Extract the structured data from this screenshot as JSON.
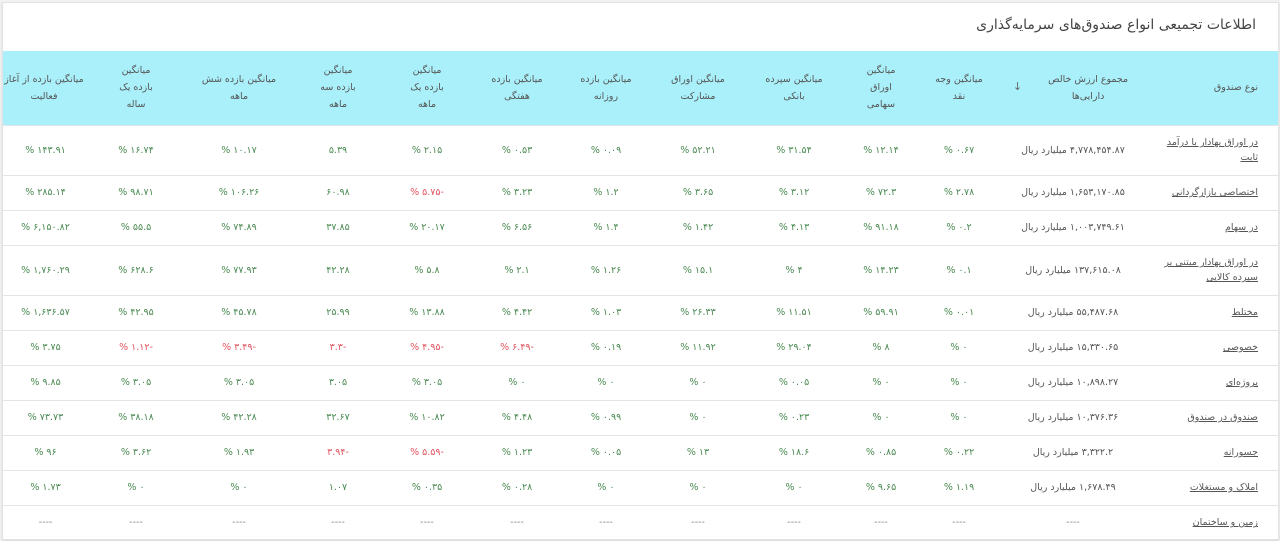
{
  "title": "اطلاعات تجمیعی انواع صندوق‌های سرمایه‌گذاری",
  "colors": {
    "header_bg": "#aaf0fa",
    "positive": "#4a8a52",
    "negative": "#e0535f"
  },
  "columns": [
    {
      "label": "نوع صندوق"
    },
    {
      "label": "مجموع ارزش خالص دارایی‌ها",
      "icon": "sort-down-arrow-icon"
    },
    {
      "label": "میانگین وجه نقد"
    },
    {
      "label": "میانگین اوراق سهامی"
    },
    {
      "label": "میانگین سپرده بانکی"
    },
    {
      "label": "میانگین اوراق مشارکت"
    },
    {
      "label": "میانگین بازده روزانه"
    },
    {
      "label": "میانگین بازده هفتگی"
    },
    {
      "label": "میانگین بازده یک ماهه"
    },
    {
      "label": "میانگین بازده سه ماهه"
    },
    {
      "label": "میانگین بازده شش ماهه"
    },
    {
      "label": "میانگین بازده یک ساله"
    },
    {
      "label": "میانگین بازده از آغاز فعالیت"
    }
  ],
  "rows": [
    {
      "type": "در اوراق بهادار با درآمد ثابت",
      "nav": "۴,۷۷۸,۴۵۴.۸۷ میلیارد ریال",
      "cash": "۰.۶۷ %",
      "stock": "۱۲.۱۴ %",
      "deposit": "۳۱.۵۴ %",
      "bonds": "۵۲.۲۱ %",
      "daily": "۰.۰۹ %",
      "weekly": "۰.۵۳ %",
      "m1": "۲.۱۵ %",
      "m3": "۵.۳۹",
      "m6": "۱۰.۱۷ %",
      "y1": "۱۶.۷۴ %",
      "since": "۱۴۳.۹۱ %",
      "neg": []
    },
    {
      "type": "اختصاصی بازارگردانی",
      "nav": "۱,۶۵۳,۱۷۰.۸۵ میلیارد ریال",
      "cash": "۲.۷۸ %",
      "stock": "۷۲.۳ %",
      "deposit": "۳.۱۲ %",
      "bonds": "۳.۶۵ %",
      "daily": "۱.۲ %",
      "weekly": "۳.۲۳ %",
      "m1": "-۵.۷۵ %",
      "m3": "۶۰.۹۸",
      "m6": "۱۰۶.۲۶ %",
      "y1": "۹۸.۷۱ %",
      "since": "۲۸۵.۱۴ %",
      "neg": [
        "m1"
      ]
    },
    {
      "type": "در سهام",
      "nav": "۱,۰۰۳,۷۴۹.۶۱ میلیارد ریال",
      "cash": "۰.۲ %",
      "stock": "۹۱.۱۸ %",
      "deposit": "۴.۱۳ %",
      "bonds": "۱.۴۲ %",
      "daily": "۱.۴ %",
      "weekly": "۶.۵۶ %",
      "m1": "۲۰.۱۷ %",
      "m3": "۳۷.۸۵",
      "m6": "۷۴.۸۹ %",
      "y1": "۵۵.۵ %",
      "since": "۶,۱۵۰.۸۲ %",
      "neg": []
    },
    {
      "type": "در اوراق بهادار مبتنی بر سپرده کالایی",
      "nav": "۱۳۷,۶۱۵.۰۸ میلیارد ریال",
      "cash": "۰.۱ %",
      "stock": "۱۴.۲۳ %",
      "deposit": "۴ %",
      "bonds": "۱۵.۱ %",
      "daily": "۱.۲۶ %",
      "weekly": "۲.۱ %",
      "m1": "۵.۸ %",
      "m3": "۴۲.۲۸",
      "m6": "۷۷.۹۳ %",
      "y1": "۶۲۸.۶ %",
      "since": "۱,۷۶۰.۲۹ %",
      "neg": []
    },
    {
      "type": "مختلط",
      "nav": "۵۵,۴۸۷.۶۸ میلیارد ریال",
      "cash": "۰.۰۱ %",
      "stock": "۵۹.۹۱ %",
      "deposit": "۱۱.۵۱ %",
      "bonds": "۲۶.۳۳ %",
      "daily": "۱.۰۳ %",
      "weekly": "۴.۴۲ %",
      "m1": "۱۳.۸۸ %",
      "m3": "۲۵.۹۹",
      "m6": "۴۵.۷۸ %",
      "y1": "۴۲.۹۵ %",
      "since": "۱,۶۳۶.۵۷ %",
      "neg": []
    },
    {
      "type": "خصوصی",
      "nav": "۱۵,۳۳۰.۶۵ میلیارد ریال",
      "cash": "۰ %",
      "stock": "۸ %",
      "deposit": "۲۹.۰۴ %",
      "bonds": "۱۱.۹۲ %",
      "daily": "۰.۱۹ %",
      "weekly": "-۶.۴۹ %",
      "m1": "-۴.۹۵ %",
      "m3": "-۳.۳",
      "m6": "-۳.۴۹ %",
      "y1": "-۱.۱۲ %",
      "since": "۳.۷۵ %",
      "neg": [
        "weekly",
        "m1",
        "m3",
        "m6",
        "y1"
      ]
    },
    {
      "type": "پروژه‌ای",
      "nav": "۱۰,۸۹۸.۲۷ میلیارد ریال",
      "cash": "۰ %",
      "stock": "۰ %",
      "deposit": "۰.۰۵ %",
      "bonds": "۰ %",
      "daily": "۰ %",
      "weekly": "۰ %",
      "m1": "۳.۰۵ %",
      "m3": "۳.۰۵",
      "m6": "۳.۰۵ %",
      "y1": "۳.۰۵ %",
      "since": "۹.۸۵ %",
      "neg": []
    },
    {
      "type": "صندوق در صندوق",
      "nav": "۱۰,۳۷۶.۳۶ میلیارد ریال",
      "cash": "۰ %",
      "stock": "۰ %",
      "deposit": "۰.۲۳ %",
      "bonds": "۰ %",
      "daily": "۰.۹۹ %",
      "weekly": "۴.۴۸ %",
      "m1": "۱۰.۸۲ %",
      "m3": "۳۲.۶۷",
      "m6": "۴۲.۲۸ %",
      "y1": "۳۸.۱۸ %",
      "since": "۷۳.۷۳ %",
      "neg": []
    },
    {
      "type": "جسورانه",
      "nav": "۳,۳۲۲.۲ میلیارد ریال",
      "cash": "۰.۲۲ %",
      "stock": "۰.۸۵ %",
      "deposit": "۱۸.۶ %",
      "bonds": "۱۳ %",
      "daily": "۰.۰۵ %",
      "weekly": "۱.۲۳ %",
      "m1": "-۵.۵۹ %",
      "m3": "-۳.۹۴",
      "m6": "۱.۹۳ %",
      "y1": "۳.۶۲ %",
      "since": "۹۶ %",
      "neg": [
        "m1",
        "m3"
      ]
    },
    {
      "type": "املاک و مستغلات",
      "nav": "۱,۶۷۸.۴۹ میلیارد ریال",
      "cash": "۱.۱۹ %",
      "stock": "۹.۶۵ %",
      "deposit": "۰ %",
      "bonds": "۰ %",
      "daily": "۰ %",
      "weekly": "۰.۲۸ %",
      "m1": "۰.۳۵ %",
      "m3": "۱.۰۷",
      "m6": "۰ %",
      "y1": "۰ %",
      "since": "۱.۷۳ %",
      "neg": []
    },
    {
      "type": "زمین و ساختمان",
      "nav": "----",
      "cash": "----",
      "stock": "----",
      "deposit": "----",
      "bonds": "----",
      "daily": "----",
      "weekly": "----",
      "m1": "----",
      "m3": "----",
      "m6": "----",
      "y1": "----",
      "since": "----",
      "neg": [],
      "dash": true
    }
  ]
}
